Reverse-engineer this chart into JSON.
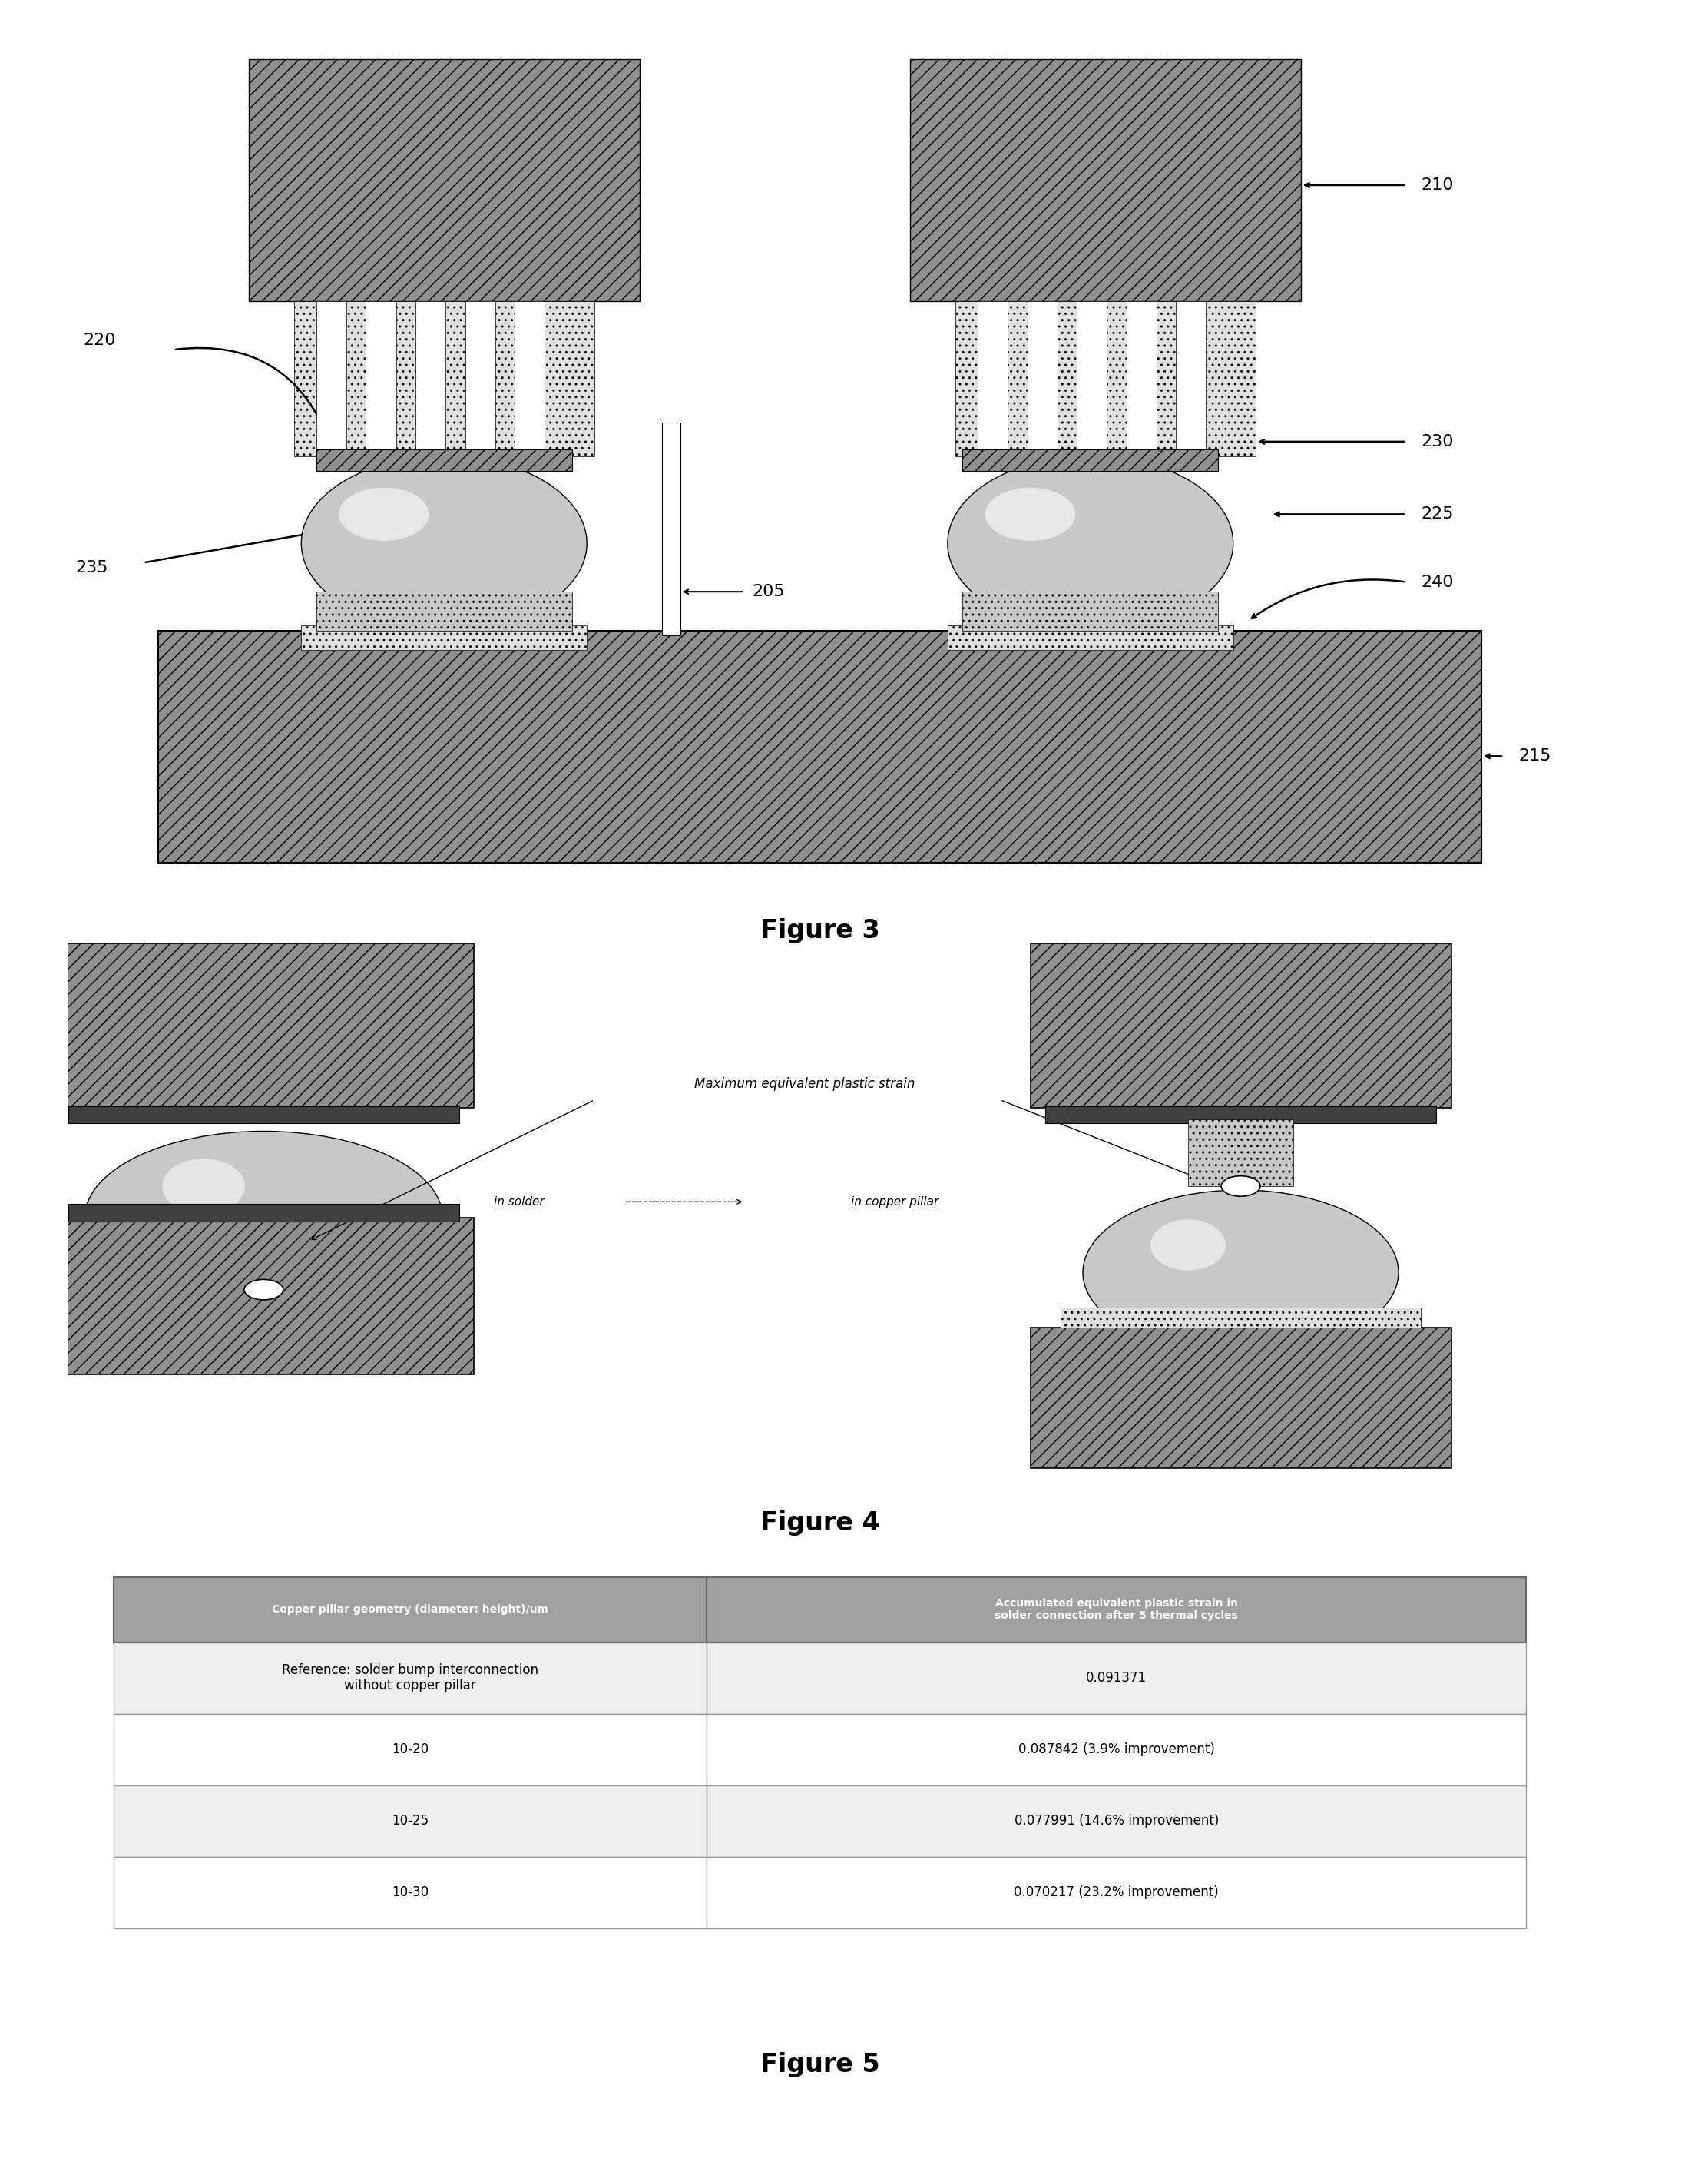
{
  "fig3": {
    "label_210": "210",
    "label_220": "220",
    "label_230": "230",
    "label_225": "225",
    "label_235": "235",
    "label_205": "205",
    "label_240": "240",
    "label_215": "215",
    "caption": "Figure 3"
  },
  "fig4": {
    "label_max_strain": "Maximum equivalent plastic strain",
    "label_in_solder": "in solder",
    "label_in_copper": "in copper pillar",
    "caption": "Figure 4"
  },
  "fig5": {
    "caption": "Figure 5",
    "col1_header": "Copper pillar geometry (diameter: height)/um",
    "col2_header": "Accumulated equivalent plastic strain in\nsolder connection after 5 thermal cycles",
    "rows": [
      [
        "Reference: solder bump interconnection\nwithout copper pillar",
        "0.091371"
      ],
      [
        "10-20",
        "0.087842 (3.9% improvement)"
      ],
      [
        "10-25",
        "0.077991 (14.6% improvement)"
      ],
      [
        "10-30",
        "0.070217 (23.2% improvement)"
      ]
    ],
    "header_bg": "#a0a0a0",
    "row_bg_alt": "#eeeeee",
    "row_bg_white": "#ffffff"
  },
  "bg_color": "#ffffff",
  "gray_dark": "#606060",
  "gray_medium": "#909090",
  "gray_light": "#c8c8c8",
  "gray_lighter": "#e0e0e0"
}
